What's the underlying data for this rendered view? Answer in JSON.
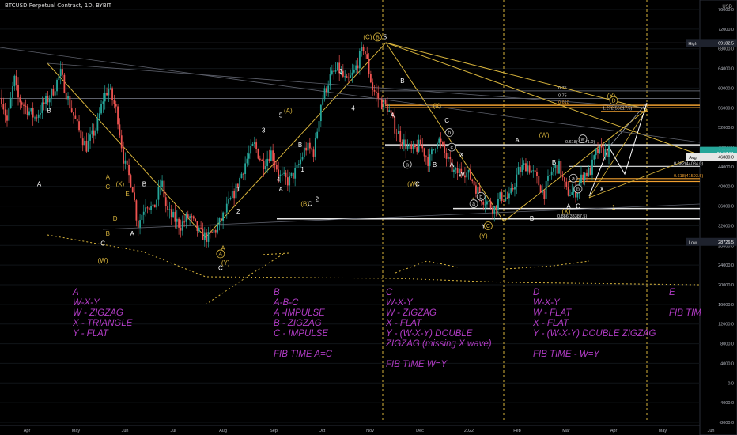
{
  "header": {
    "symbol_title": "BTCUSD Perpetual Contract, 1D, BYBIT",
    "currency": "USD"
  },
  "chart_data": {
    "type": "candlestick",
    "title": "BTCUSD Perpetual Contract, 1D, BYBIT",
    "ylim": [
      -9000,
      77000
    ],
    "y_ticks": [
      "76000.0",
      "72000.0",
      "68000.0",
      "64000.0",
      "60000.0",
      "56000.0",
      "52000.0",
      "48000.0",
      "44000.0",
      "40000.0",
      "36000.0",
      "32000.0",
      "28000.0",
      "24000.0",
      "20000.0",
      "16000.0",
      "12000.0",
      "8000.0",
      "4000.0",
      "0.0",
      "-4000.0",
      "-8000.0"
    ],
    "x_ticks": [
      "Apr",
      "May",
      "Jun",
      "Jul",
      "Aug",
      "Sep",
      "Oct",
      "Nov",
      "Dec",
      "2022",
      "Feb",
      "Mar",
      "Apr",
      "May",
      "Jun"
    ],
    "price_badges": [
      {
        "label": "High",
        "value": "69182.5",
        "price": 69182.5,
        "color": "#1e222d"
      },
      {
        "label": "",
        "value": "47249.5",
        "price": 47249.5,
        "color": "#26a69a"
      },
      {
        "label": "",
        "value": "01:57:21",
        "price": 46700,
        "color": "#26a69a"
      },
      {
        "label": "Avg",
        "value": "46880.0",
        "price": 46000,
        "color": "#e6e6e6"
      },
      {
        "label": "Low",
        "value": "28726.5",
        "price": 28726.5,
        "color": "#1e222d"
      }
    ],
    "anchors": [
      {
        "x": 0.06,
        "p": 58000
      },
      {
        "x": 0.4,
        "p": 53000
      },
      {
        "x": 0.8,
        "p": 62000
      },
      {
        "x": 1,
        "p": 58000
      },
      {
        "x": 2,
        "p": 54000
      },
      {
        "x": 3,
        "p": 59000
      },
      {
        "x": 3.5,
        "p": 63000
      },
      {
        "x": 4,
        "p": 57000
      },
      {
        "x": 4.5,
        "p": 52000
      },
      {
        "x": 5,
        "p": 48000
      },
      {
        "x": 5.6,
        "p": 52000
      },
      {
        "x": 6,
        "p": 58000
      },
      {
        "x": 6.3,
        "p": 60000
      },
      {
        "x": 6.8,
        "p": 55000
      },
      {
        "x": 7.2,
        "p": 45000
      },
      {
        "x": 7.7,
        "p": 40000
      },
      {
        "x": 8,
        "p": 32000
      },
      {
        "x": 8.5,
        "p": 37000
      },
      {
        "x": 8.9,
        "p": 35000
      },
      {
        "x": 9.4,
        "p": 41000
      },
      {
        "x": 9.7,
        "p": 35000
      },
      {
        "x": 10.5,
        "p": 32000
      },
      {
        "x": 11,
        "p": 34000
      },
      {
        "x": 11.6,
        "p": 30500
      },
      {
        "x": 12.1,
        "p": 29500
      },
      {
        "x": 12.5,
        "p": 31000
      },
      {
        "x": 13,
        "p": 34000
      },
      {
        "x": 13.8,
        "p": 40000
      },
      {
        "x": 14.3,
        "p": 45000
      },
      {
        "x": 14.8,
        "p": 48500
      },
      {
        "x": 15.3,
        "p": 44500
      },
      {
        "x": 15.8,
        "p": 47000
      },
      {
        "x": 16.3,
        "p": 42000
      },
      {
        "x": 16.8,
        "p": 41000
      },
      {
        "x": 17.3,
        "p": 43500
      },
      {
        "x": 17.8,
        "p": 48000
      },
      {
        "x": 18.3,
        "p": 47000
      },
      {
        "x": 18.7,
        "p": 57000
      },
      {
        "x": 19.2,
        "p": 62000
      },
      {
        "x": 19.7,
        "p": 64000
      },
      {
        "x": 20.2,
        "p": 61000
      },
      {
        "x": 20.6,
        "p": 63000
      },
      {
        "x": 21.2,
        "p": 68500
      },
      {
        "x": 21.7,
        "p": 60000
      },
      {
        "x": 22.2,
        "p": 57000
      },
      {
        "x": 22.6,
        "p": 56000
      },
      {
        "x": 23,
        "p": 52000
      },
      {
        "x": 23.5,
        "p": 49000
      },
      {
        "x": 24,
        "p": 47000
      },
      {
        "x": 24.5,
        "p": 48500
      },
      {
        "x": 25,
        "p": 45000
      },
      {
        "x": 25.5,
        "p": 50000
      },
      {
        "x": 26,
        "p": 46000
      },
      {
        "x": 26.5,
        "p": 42500
      },
      {
        "x": 27,
        "p": 43500
      },
      {
        "x": 27.5,
        "p": 41500
      },
      {
        "x": 28,
        "p": 38000
      },
      {
        "x": 28.5,
        "p": 36500
      },
      {
        "x": 28.8,
        "p": 35500
      },
      {
        "x": 29.2,
        "p": 38000
      },
      {
        "x": 29.7,
        "p": 37500
      },
      {
        "x": 30.2,
        "p": 43000
      },
      {
        "x": 30.7,
        "p": 44500
      },
      {
        "x": 31.2,
        "p": 42000
      },
      {
        "x": 31.7,
        "p": 38500
      },
      {
        "x": 32.2,
        "p": 43500
      },
      {
        "x": 32.6,
        "p": 44000
      },
      {
        "x": 33,
        "p": 39000
      },
      {
        "x": 33.5,
        "p": 38500
      },
      {
        "x": 34,
        "p": 42500
      },
      {
        "x": 34.4,
        "p": 43000
      },
      {
        "x": 34.8,
        "p": 47200
      },
      {
        "x": 35.2,
        "p": 46880
      },
      {
        "x": 35.5,
        "p": 47249.5
      }
    ],
    "horizontal_lines": [
      {
        "price": 69182.5,
        "label": ""
      },
      {
        "price": 59450,
        "label": "0.75"
      },
      {
        "price": 57900,
        "label": "0.75"
      },
      {
        "price": 56500,
        "label": "0.618"
      },
      {
        "price": 56000,
        "label": ""
      },
      {
        "price": 48471,
        "label": "0.618(48471.0)"
      },
      {
        "price": 44084,
        "label": "0.382(44084.0)"
      },
      {
        "price": 41593.5,
        "label": "0.618(41593.5)"
      },
      {
        "price": 41000,
        "label": ""
      },
      {
        "price": 35500,
        "label": ""
      },
      {
        "price": 33387.5,
        "label": "0.886(33387.5)"
      },
      {
        "price": 55317.5,
        "label": "1.272(55317.5)"
      }
    ],
    "wave_labels": [
      {
        "x": 0.9,
        "p": 55000,
        "text": "B",
        "color": "#fff"
      },
      {
        "x": 0.5,
        "p": 40000,
        "text": "A",
        "color": "#fff"
      },
      {
        "x": 3.3,
        "p": 41500,
        "text": "A",
        "color": "#d8b43c"
      },
      {
        "x": 3.3,
        "p": 39500,
        "text": "C",
        "color": "#d8b43c"
      },
      {
        "x": 3.8,
        "p": 40000,
        "text": "(X)",
        "color": "#d8b43c"
      },
      {
        "x": 4.1,
        "p": 38000,
        "text": "E",
        "color": "#d8b43c"
      },
      {
        "x": 4.8,
        "p": 40000,
        "text": "B",
        "color": "#fff"
      },
      {
        "x": 3.6,
        "p": 33000,
        "text": "D",
        "color": "#d8b43c"
      },
      {
        "x": 3.3,
        "p": 30000,
        "text": "B",
        "color": "#d8b43c"
      },
      {
        "x": 4.3,
        "p": 30000,
        "text": "A",
        "color": "#fff"
      },
      {
        "x": 3.1,
        "p": 28000,
        "text": "C",
        "color": "#fff"
      },
      {
        "x": 3.1,
        "p": 24500,
        "text": "(W)",
        "color": "#d8b43c"
      },
      {
        "x": 7.9,
        "p": 23000,
        "text": "C",
        "color": "#fff"
      },
      {
        "x": 8.1,
        "p": 24000,
        "text": "(Y)",
        "color": "#d8b43c"
      },
      {
        "x": 8.0,
        "p": 27000,
        "text": "A",
        "color": "#d8b43c"
      },
      {
        "x": 8.6,
        "p": 39000,
        "text": "1",
        "color": "#fff"
      },
      {
        "x": 8.6,
        "p": 34500,
        "text": "2",
        "color": "#fff"
      },
      {
        "x": 9.6,
        "p": 51000,
        "text": "3",
        "color": "#fff"
      },
      {
        "x": 10.2,
        "p": 41000,
        "text": "4",
        "color": "#fff"
      },
      {
        "x": 10.3,
        "p": 54000,
        "text": "5",
        "color": "#fff"
      },
      {
        "x": 10.6,
        "p": 55000,
        "text": "(A)",
        "color": "#d8b43c"
      },
      {
        "x": 11.1,
        "p": 48000,
        "text": "B",
        "color": "#fff"
      },
      {
        "x": 11.2,
        "p": 43000,
        "text": "1",
        "color": "#fff"
      },
      {
        "x": 10.3,
        "p": 39000,
        "text": "A",
        "color": "#fff"
      },
      {
        "x": 11.3,
        "p": 36000,
        "text": "(B)",
        "color": "#d8b43c"
      },
      {
        "x": 11.5,
        "p": 36000,
        "text": "C",
        "color": "#fff"
      },
      {
        "x": 11.8,
        "p": 37000,
        "text": "2",
        "color": "#fff"
      },
      {
        "x": 12.8,
        "p": 63000,
        "text": "3",
        "color": "#fff"
      },
      {
        "x": 13.3,
        "p": 55500,
        "text": "4",
        "color": "#fff"
      },
      {
        "x": 13.9,
        "p": 70000,
        "text": "(C)",
        "color": "#d8b43c"
      },
      {
        "x": 14.3,
        "p": 70000,
        "text": "B",
        "color": "#d8b43c"
      },
      {
        "x": 14.6,
        "p": 70000,
        "text": "5",
        "color": "#fff"
      },
      {
        "x": 15.3,
        "p": 61000,
        "text": "B",
        "color": "#fff"
      },
      {
        "x": 14.9,
        "p": 54000,
        "text": "A",
        "color": "#fff"
      },
      {
        "x": 15.7,
        "p": 40000,
        "text": "(W)",
        "color": "#d8b43c"
      },
      {
        "x": 15.9,
        "p": 40000,
        "text": "C",
        "color": "#fff"
      },
      {
        "x": 16.7,
        "p": 56000,
        "text": "(X)",
        "color": "#d8b43c"
      },
      {
        "x": 17.1,
        "p": 53000,
        "text": "C",
        "color": "#fff"
      },
      {
        "x": 16.6,
        "p": 44000,
        "text": "B",
        "color": "#fff"
      },
      {
        "x": 17.3,
        "p": 44000,
        "text": "A",
        "color": "#fff"
      },
      {
        "x": 17.7,
        "p": 46000,
        "text": "X",
        "color": "#fff"
      },
      {
        "x": 17.7,
        "p": 42000,
        "text": "W",
        "color": "#fff"
      },
      {
        "x": 18.6,
        "p": 31500,
        "text": "Y",
        "color": "#fff"
      },
      {
        "x": 18.8,
        "p": 31500,
        "text": "C",
        "color": "#d8b43c"
      },
      {
        "x": 18.6,
        "p": 29500,
        "text": "(Y)",
        "color": "#d8b43c"
      },
      {
        "x": 20.0,
        "p": 49000,
        "text": "A",
        "color": "#fff"
      },
      {
        "x": 20.6,
        "p": 33000,
        "text": "B",
        "color": "#fff"
      },
      {
        "x": 21.1,
        "p": 50000,
        "text": "(W)",
        "color": "#d8b43c"
      },
      {
        "x": 21.5,
        "p": 44500,
        "text": "B",
        "color": "#fff"
      },
      {
        "x": 22.1,
        "p": 35500,
        "text": "A",
        "color": "#fff"
      },
      {
        "x": 22.5,
        "p": 35500,
        "text": "C",
        "color": "#fff"
      },
      {
        "x": 22.0,
        "p": 34500,
        "text": "(X)",
        "color": "#d8b43c"
      },
      {
        "x": 23.5,
        "p": 39000,
        "text": "X",
        "color": "#fff"
      },
      {
        "x": 23.9,
        "p": 58000,
        "text": "(Y)",
        "color": "#d8b43c"
      },
      {
        "x": 18.2,
        "p": 36800,
        "text": "1",
        "color": "#d8b43c"
      },
      {
        "x": 24.0,
        "p": 35300,
        "text": "1",
        "color": "#d8b43c"
      }
    ],
    "circle_labels": [
      {
        "x": 7.9,
        "p": 25800,
        "text": "A"
      },
      {
        "x": 14.3,
        "p": 69900,
        "text": "B"
      },
      {
        "x": 18.8,
        "p": 31500,
        "text": "C"
      },
      {
        "x": 17.2,
        "p": 50500,
        "text": "b"
      },
      {
        "x": 17.3,
        "p": 47500,
        "text": "c"
      },
      {
        "x": 18.2,
        "p": 36000,
        "text": "a"
      },
      {
        "x": 18.5,
        "p": 37500,
        "text": "b"
      },
      {
        "x": 22.3,
        "p": 41200,
        "text": "a"
      },
      {
        "x": 22.5,
        "p": 39000,
        "text": "b"
      },
      {
        "x": 22.7,
        "p": 49200,
        "text": "w"
      },
      {
        "x": 15.5,
        "p": 44000,
        "text": "a"
      },
      {
        "x": 24.0,
        "p": 57000,
        "text": "D"
      }
    ]
  },
  "annotations": {
    "col_a": {
      "title": "A",
      "lines": [
        "W-X-Y",
        "W - ZIGZAG",
        "X - TRIANGLE",
        "Y - FLAT"
      ]
    },
    "col_b": {
      "title": "B",
      "lines": [
        "A-B-C",
        "A -IMPULSE",
        "B - ZIGZAG",
        "C - IMPULSE"
      ],
      "fib": "FIB TIME A=C"
    },
    "col_c": {
      "title": "C",
      "lines": [
        "W-X-Y",
        "W - ZIGZAG",
        "X - FLAT",
        "Y - (W-X-Y) DOUBLE",
        "ZIGZAG (missing X wave)"
      ],
      "fib": "FIB TIME W=Y"
    },
    "col_d": {
      "title": "D",
      "lines": [
        "W-X-Y",
        "W - FLAT",
        "X - FLAT",
        "Y - (W-X-Y) DOUBLE ZIGZAG"
      ],
      "fib": "FIB TIME - W=Y"
    },
    "col_e": {
      "title": "E",
      "fib": "FIB TIME - A"
    }
  },
  "colors": {
    "up": "#26a69a",
    "down": "#ef5350",
    "fib": "#d8b43c",
    "note": "#b23cc6",
    "orange": "#f0a030"
  }
}
